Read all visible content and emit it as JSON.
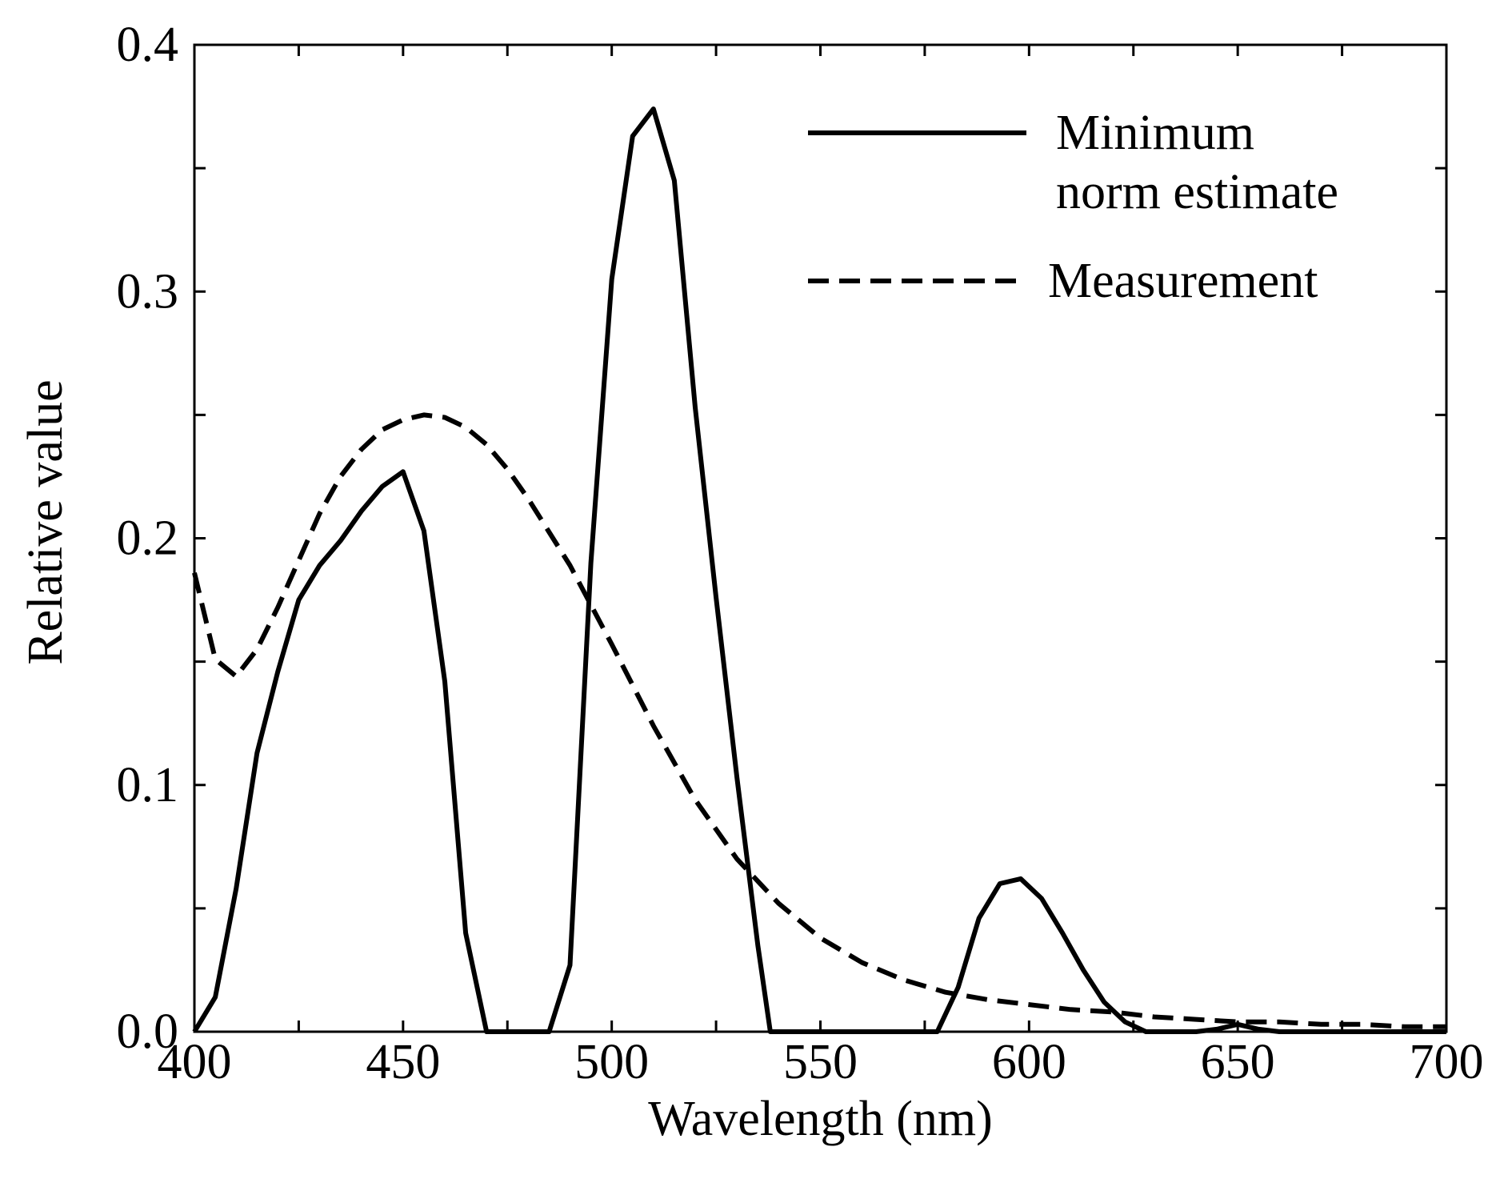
{
  "chart_data": {
    "type": "line",
    "title": "",
    "xlabel": "Wavelength (nm)",
    "ylabel": "Relative value",
    "xlim": [
      400,
      700
    ],
    "ylim": [
      0,
      0.4
    ],
    "xticks": [
      400,
      450,
      500,
      550,
      600,
      650,
      700
    ],
    "xtick_labels": [
      "400",
      "450",
      "500",
      "550",
      "600",
      "650",
      "700"
    ],
    "yticks": [
      0,
      0.1,
      0.2,
      0.3,
      0.4
    ],
    "ytick_labels": [
      "0.0",
      "0.1",
      "0.2",
      "0.3",
      "0.4"
    ],
    "grid": false,
    "legend_position": "top-right",
    "series": [
      {
        "name": "Minimum norm estimate",
        "label_lines": [
          "Minimum",
          "norm estimate"
        ],
        "style": "solid",
        "color": "#000000",
        "x": [
          400,
          405,
          410,
          415,
          420,
          425,
          430,
          435,
          440,
          445,
          450,
          455,
          460,
          465,
          470,
          475,
          480,
          485,
          490,
          495,
          500,
          505,
          510,
          515,
          520,
          525,
          530,
          535,
          538,
          545,
          550,
          560,
          570,
          578,
          583,
          588,
          593,
          598,
          603,
          608,
          613,
          618,
          623,
          628,
          633,
          640,
          645,
          650,
          655,
          660,
          670,
          680,
          690,
          700
        ],
        "y": [
          0.0,
          0.014,
          0.058,
          0.113,
          0.146,
          0.175,
          0.189,
          0.199,
          0.211,
          0.221,
          0.227,
          0.203,
          0.142,
          0.04,
          0.0,
          0.0,
          0.0,
          0.0,
          0.027,
          0.19,
          0.305,
          0.363,
          0.374,
          0.345,
          0.253,
          0.176,
          0.103,
          0.035,
          0.0,
          0.0,
          0.0,
          0.0,
          0.0,
          0.0,
          0.018,
          0.046,
          0.06,
          0.062,
          0.054,
          0.04,
          0.025,
          0.012,
          0.004,
          0.0,
          0.0,
          0.0,
          0.001,
          0.003,
          0.001,
          0.0,
          0.0,
          0.0,
          0.0,
          0.0
        ]
      },
      {
        "name": "Measurement",
        "label_lines": [
          "Measurement"
        ],
        "style": "dashed",
        "color": "#000000",
        "x": [
          400,
          405,
          410,
          415,
          420,
          425,
          430,
          435,
          440,
          445,
          450,
          455,
          460,
          465,
          470,
          475,
          480,
          490,
          500,
          510,
          520,
          530,
          540,
          550,
          560,
          570,
          580,
          590,
          600,
          610,
          620,
          630,
          640,
          650,
          660,
          670,
          680,
          690,
          700
        ],
        "y": [
          0.186,
          0.151,
          0.144,
          0.155,
          0.172,
          0.191,
          0.21,
          0.225,
          0.236,
          0.244,
          0.248,
          0.25,
          0.249,
          0.245,
          0.238,
          0.228,
          0.216,
          0.189,
          0.157,
          0.124,
          0.094,
          0.07,
          0.052,
          0.038,
          0.028,
          0.021,
          0.016,
          0.013,
          0.011,
          0.009,
          0.008,
          0.006,
          0.005,
          0.004,
          0.004,
          0.003,
          0.003,
          0.002,
          0.002
        ]
      }
    ]
  }
}
